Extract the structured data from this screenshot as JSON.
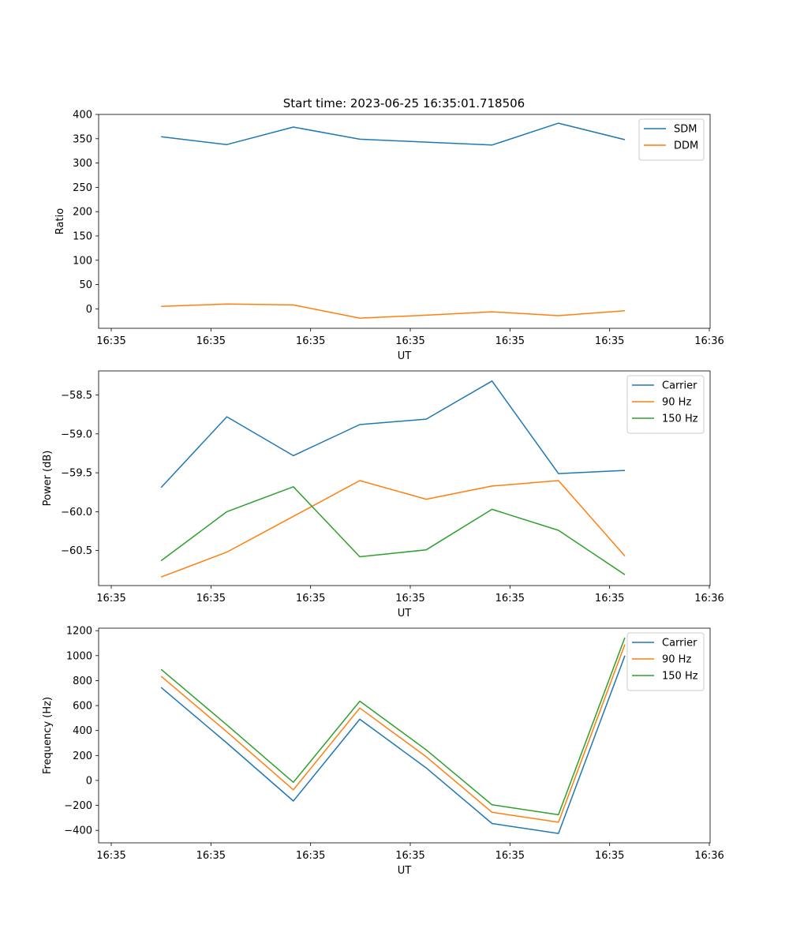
{
  "figure_title": "Start time: 2023-06-25 16:35:01.718506",
  "colors": {
    "blue": "#1f77b4",
    "orange": "#ff7f0e",
    "green": "#2ca02c"
  },
  "chart_data": [
    {
      "type": "line",
      "xlabel": "UT",
      "ylabel": "Ratio",
      "x_tick_labels": [
        "16:35",
        "16:35",
        "16:35",
        "16:35",
        "16:35",
        "16:35",
        "16:36"
      ],
      "y_ticks": [
        0,
        50,
        100,
        150,
        200,
        250,
        300,
        350,
        400
      ],
      "y_tick_labels": [
        "0",
        "50",
        "100",
        "150",
        "200",
        "250",
        "300",
        "350",
        "400"
      ],
      "ylim": [
        -40,
        400
      ],
      "legend_position": "top-right",
      "series": [
        {
          "name": "SDM",
          "color": "#1f77b4",
          "values": [
            354,
            338,
            374,
            349,
            343,
            337,
            382,
            348
          ]
        },
        {
          "name": "DDM",
          "color": "#ff7f0e",
          "values": [
            5,
            10,
            8,
            -19,
            -13,
            -6,
            -14,
            -4
          ]
        }
      ]
    },
    {
      "type": "line",
      "xlabel": "UT",
      "ylabel": "Power (dB)",
      "x_tick_labels": [
        "16:35",
        "16:35",
        "16:35",
        "16:35",
        "16:35",
        "16:35",
        "16:36"
      ],
      "y_ticks": [
        -60.5,
        -60.0,
        -59.5,
        -59.0,
        -58.5
      ],
      "y_tick_labels": [
        "−60.5",
        "−60.0",
        "−59.5",
        "−59.0",
        "−58.5"
      ],
      "ylim": [
        -60.95,
        -58.19
      ],
      "legend_position": "top-right",
      "series": [
        {
          "name": "Carrier",
          "color": "#1f77b4",
          "values": [
            -59.69,
            -58.78,
            -59.28,
            -58.88,
            -58.81,
            -58.32,
            -59.51,
            -59.47
          ]
        },
        {
          "name": "90 Hz",
          "color": "#ff7f0e",
          "values": [
            -60.84,
            -60.52,
            -60.06,
            -59.6,
            -59.84,
            -59.67,
            -59.6,
            -60.57
          ]
        },
        {
          "name": "150 Hz",
          "color": "#2ca02c",
          "values": [
            -60.63,
            -60.0,
            -59.68,
            -60.58,
            -60.49,
            -59.97,
            -60.24,
            -60.81
          ]
        }
      ]
    },
    {
      "type": "line",
      "xlabel": "UT",
      "ylabel": "Frequency (Hz)",
      "x_tick_labels": [
        "16:35",
        "16:35",
        "16:35",
        "16:35",
        "16:35",
        "16:35",
        "16:36"
      ],
      "y_ticks": [
        -400,
        -200,
        0,
        200,
        400,
        600,
        800,
        1000,
        1200
      ],
      "y_tick_labels": [
        "−400",
        "−200",
        "0",
        "200",
        "400",
        "600",
        "800",
        "1000",
        "1200"
      ],
      "ylim": [
        -500,
        1220
      ],
      "legend_position": "top-right",
      "series": [
        {
          "name": "Carrier",
          "color": "#1f77b4",
          "values": [
            745,
            300,
            -165,
            490,
            100,
            -345,
            -425,
            1000
          ]
        },
        {
          "name": "90 Hz",
          "color": "#ff7f0e",
          "values": [
            835,
            390,
            -75,
            580,
            190,
            -255,
            -335,
            1090
          ]
        },
        {
          "name": "150 Hz",
          "color": "#2ca02c",
          "values": [
            890,
            445,
            -15,
            635,
            245,
            -195,
            -275,
            1145
          ]
        }
      ]
    }
  ]
}
